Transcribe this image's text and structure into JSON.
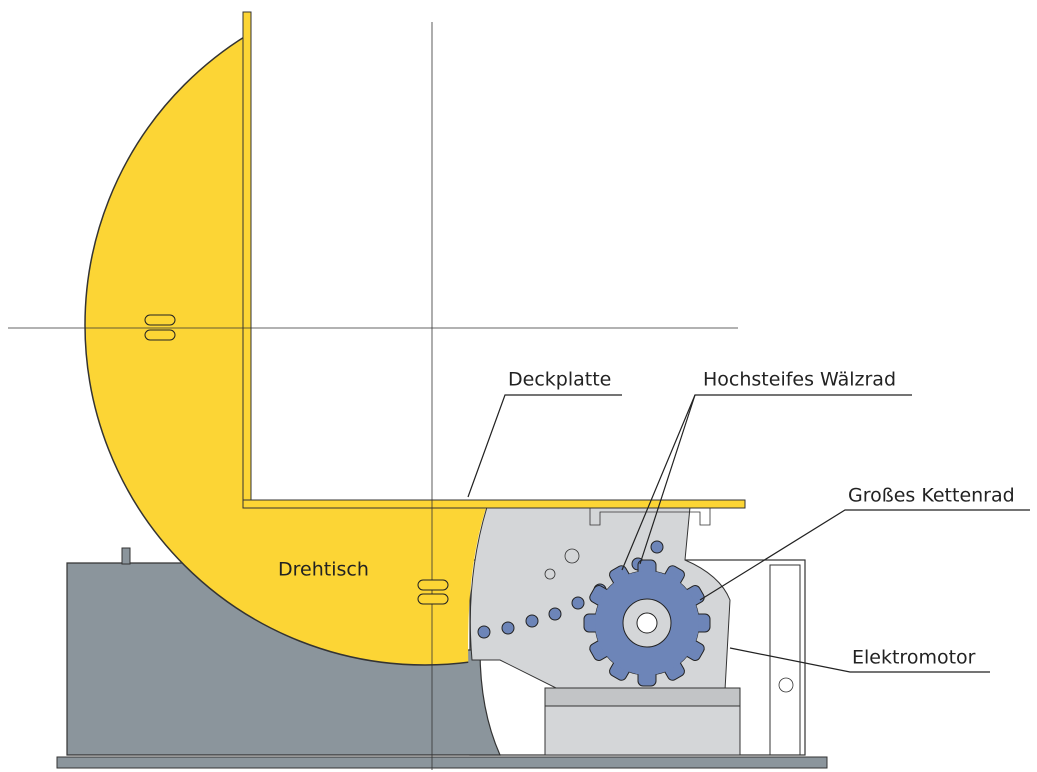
{
  "labels": [
    {
      "text": "Deckplatte"
    },
    {
      "text": "Hochsteifes Wälzrad"
    },
    {
      "text": "Großes Kettenrad"
    },
    {
      "text": "Elektromotor"
    },
    {
      "text": "Drehtisch"
    }
  ]
}
